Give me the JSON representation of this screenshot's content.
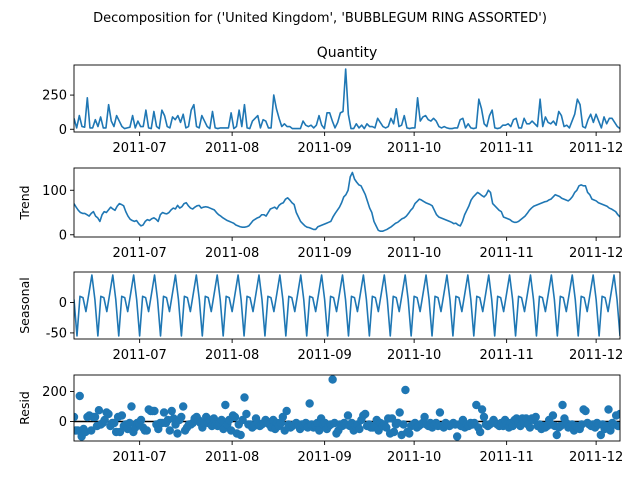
{
  "figure": {
    "suptitle": "Decomposition for ('United Kingdom', 'BUBBLEGUM RING ASSORTED')"
  },
  "colors": {
    "series": "#1f77b4",
    "axes": "#000000",
    "zero_line": "#000000"
  },
  "x_axis": {
    "start": "2011-06-09",
    "end": "2011-12-09",
    "tick_labels": [
      "2011-07",
      "2011-08",
      "2011-09",
      "2011-10",
      "2011-11",
      "2011-12"
    ]
  },
  "chart_data": [
    {
      "type": "line",
      "title": "Quantity",
      "ylabel": "",
      "ylim": [
        -20,
        470
      ],
      "yticks": [
        0,
        250
      ],
      "series": [
        {
          "values": [
            80,
            10,
            100,
            20,
            15,
            230,
            10,
            10,
            70,
            20,
            90,
            10,
            10,
            180,
            60,
            20,
            100,
            60,
            20,
            5,
            10,
            15,
            100,
            10,
            60,
            20,
            20,
            140,
            10,
            5,
            130,
            20,
            5,
            140,
            100,
            20,
            10,
            90,
            70,
            100,
            50,
            110,
            10,
            20,
            140,
            180,
            20,
            10,
            100,
            60,
            20,
            5,
            130,
            10,
            5,
            10,
            10,
            10,
            10,
            120,
            5,
            20,
            140,
            20,
            180,
            10,
            5,
            60,
            80,
            100,
            10,
            70,
            60,
            10,
            10,
            250,
            150,
            80,
            20,
            40,
            20,
            20,
            5,
            5,
            5,
            5,
            60,
            30,
            20,
            30,
            10,
            30,
            100,
            30,
            5,
            120,
            120,
            60,
            10,
            50,
            120,
            130,
            440,
            110,
            5,
            5,
            40,
            10,
            30,
            5,
            40,
            20,
            20,
            10,
            80,
            50,
            20,
            10,
            20,
            80,
            40,
            150,
            20,
            30,
            100,
            10,
            5,
            10,
            10,
            230,
            60,
            90,
            100,
            70,
            60,
            80,
            60,
            20,
            10,
            20,
            10,
            5,
            5,
            10,
            10,
            70,
            80,
            10,
            40,
            10,
            5,
            10,
            220,
            150,
            40,
            20,
            100,
            140,
            10,
            5,
            10,
            30,
            30,
            40,
            20,
            70,
            80,
            10,
            10,
            80,
            40,
            40,
            60,
            40,
            20,
            220,
            20,
            90,
            50,
            40,
            60,
            30,
            130,
            100,
            20,
            30,
            10,
            60,
            110,
            220,
            180,
            20,
            10,
            70,
            110,
            50,
            110,
            60,
            10,
            90,
            40,
            80,
            80,
            50,
            20,
            5
          ]
        }
      ]
    },
    {
      "type": "line",
      "title": "",
      "ylabel": "Trend",
      "ylim": [
        -5,
        150
      ],
      "yticks": [
        0,
        100
      ],
      "series": [
        {
          "values": [
            70,
            62,
            55,
            50,
            48,
            48,
            45,
            42,
            48,
            52,
            42,
            38,
            30,
            45,
            52,
            50,
            56,
            62,
            58,
            55,
            64,
            70,
            68,
            65,
            52,
            42,
            35,
            32,
            30,
            32,
            25,
            20,
            22,
            30,
            34,
            32,
            36,
            38,
            35,
            30,
            45,
            50,
            48,
            47,
            50,
            56,
            60,
            58,
            66,
            60,
            63,
            70,
            72,
            65,
            60,
            58,
            62,
            65,
            66,
            60,
            62,
            63,
            62,
            60,
            58,
            56,
            50,
            45,
            42,
            38,
            35,
            32,
            30,
            28,
            26,
            22,
            20,
            18,
            17,
            17,
            18,
            20,
            26,
            32,
            35,
            38,
            40,
            45,
            45,
            42,
            50,
            58,
            60,
            62,
            58,
            66,
            70,
            72,
            80,
            83,
            78,
            72,
            68,
            50,
            40,
            30,
            25,
            20,
            17,
            16,
            14,
            12,
            12,
            18,
            20,
            22,
            24,
            26,
            28,
            30,
            40,
            48,
            55,
            62,
            72,
            85,
            90,
            100,
            130,
            140,
            125,
            118,
            112,
            110,
            100,
            90,
            75,
            60,
            50,
            30,
            20,
            10,
            8,
            8,
            10,
            12,
            15,
            18,
            22,
            26,
            28,
            32,
            36,
            38,
            42,
            48,
            55,
            60,
            70,
            75,
            80,
            78,
            75,
            72,
            70,
            68,
            65,
            55,
            45,
            40,
            38,
            36,
            34,
            32,
            30,
            28,
            25,
            26,
            22,
            20,
            30,
            45,
            55,
            65,
            78,
            85,
            90,
            95,
            92,
            88,
            85,
            90,
            100,
            95,
            70,
            65,
            60,
            55,
            52,
            40,
            38,
            36,
            34,
            30,
            28,
            28,
            30,
            34,
            38,
            42,
            48,
            55,
            60,
            64,
            66,
            68,
            70,
            72,
            74,
            75,
            78,
            80,
            85,
            90,
            88,
            86,
            82,
            80,
            78,
            76,
            80,
            86,
            95,
            100,
            110,
            112,
            110,
            110,
            95,
            90,
            80,
            78,
            76,
            72,
            70,
            68,
            66,
            64,
            60,
            58,
            55,
            52,
            45,
            40
          ]
        }
      ]
    },
    {
      "type": "line",
      "title": "",
      "ylabel": "Seasonal",
      "ylim": [
        -60,
        50
      ],
      "yticks": [
        -50,
        0
      ],
      "series": [
        {
          "pattern": [
            5,
            -55,
            10,
            8,
            -15,
            15,
            45
          ],
          "values": []
        }
      ]
    },
    {
      "type": "scatter",
      "title": "",
      "ylabel": "Resid",
      "ylim": [
        -130,
        310
      ],
      "yticks": [
        0,
        200
      ],
      "series": [
        {
          "values": [
            30,
            -60,
            -60,
            170,
            -100,
            -50,
            -70,
            30,
            40,
            -60,
            30,
            30,
            -30,
            75,
            -20,
            -10,
            10,
            60,
            50,
            -30,
            -10,
            -10,
            -70,
            30,
            -70,
            40,
            -30,
            -20,
            -50,
            -10,
            100,
            -70,
            -40,
            -10,
            -10,
            10,
            -40,
            -60,
            -60,
            80,
            70,
            70,
            70,
            -20,
            -50,
            -10,
            -10,
            60,
            -10,
            10,
            -60,
            70,
            20,
            -20,
            -80,
            10,
            30,
            100,
            -60,
            -40,
            -20,
            -20,
            -10,
            20,
            30,
            10,
            -10,
            -40,
            -10,
            30,
            -10,
            10,
            -30,
            20,
            -20,
            -30,
            -10,
            10,
            -50,
            110,
            -20,
            10,
            -60,
            40,
            30,
            -80,
            -20,
            -90,
            10,
            160,
            50,
            -20,
            -20,
            -40,
            -30,
            20,
            -10,
            -30,
            -20,
            -10,
            10,
            -10,
            -20,
            -40,
            10,
            -50,
            -10,
            -30,
            -10,
            30,
            -60,
            70,
            -20,
            -40,
            -30,
            -20,
            -10,
            -20,
            -50,
            -20,
            -30,
            -10,
            -40,
            120,
            -20,
            -40,
            -30,
            -10,
            -60,
            20,
            -20,
            -10,
            -50,
            -30,
            -20,
            280,
            -10,
            -80,
            -60,
            -20,
            -30,
            -10,
            -20,
            40,
            -30,
            -10,
            -60,
            -30,
            -20,
            -50,
            10,
            40,
            50,
            -30,
            -20,
            -40,
            -40,
            -30,
            10,
            -60,
            -10,
            -30,
            -20,
            -40,
            20,
            -80,
            20,
            -70,
            -20,
            -10,
            60,
            -90,
            -20,
            210,
            -70,
            -80,
            -30,
            -20,
            -10,
            -40,
            -30,
            -20,
            -10,
            30,
            -20,
            -30,
            -10,
            -40,
            -20,
            -10,
            -30,
            60,
            -30,
            -40,
            -10,
            -20,
            -30,
            -20,
            -10,
            -20,
            -100,
            -20,
            -30,
            10,
            -40,
            -20,
            -30,
            -10,
            -20,
            -10,
            110,
            -40,
            -70,
            80,
            30,
            -20,
            -30,
            -20,
            -10,
            10,
            -10,
            -20,
            -30,
            -10,
            -30,
            10,
            -20,
            -40,
            -10,
            -30,
            10,
            20,
            -10,
            -30,
            20,
            -10,
            20,
            -20,
            -40,
            20,
            10,
            30,
            -30,
            -20,
            -50,
            -30,
            -40,
            -30,
            10,
            -20,
            40,
            -30,
            -90,
            -40,
            -30,
            110,
            20,
            -10,
            -40,
            -30,
            -20,
            -60,
            -30,
            -40,
            -50,
            -20,
            80,
            70,
            -10,
            -20,
            -30,
            -20,
            -40,
            -10,
            -20,
            -90,
            -20,
            -50,
            -30,
            80,
            -60,
            -10,
            -20,
            40,
            -30,
            50
          ]
        }
      ]
    }
  ]
}
